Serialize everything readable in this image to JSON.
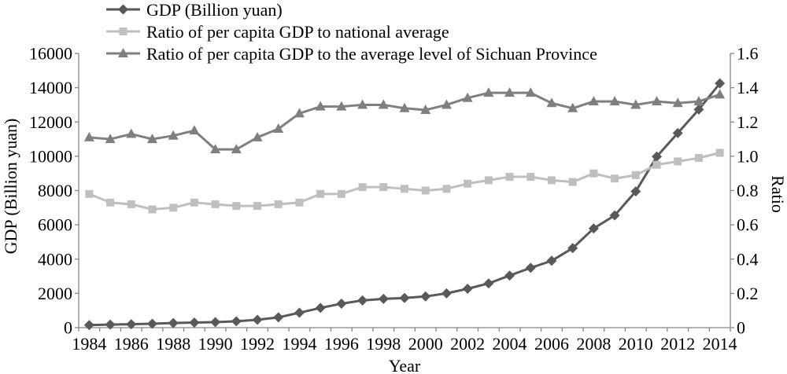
{
  "chart_data": {
    "type": "line",
    "x": [
      1984,
      1985,
      1986,
      1987,
      1988,
      1989,
      1990,
      1991,
      1992,
      1993,
      1994,
      1995,
      1996,
      1997,
      1998,
      1999,
      2000,
      2001,
      2002,
      2003,
      2004,
      2005,
      2006,
      2007,
      2008,
      2009,
      2010,
      2011,
      2012,
      2013,
      2014
    ],
    "xticks": [
      "1984",
      "1986",
      "1988",
      "1990",
      "1992",
      "1994",
      "1996",
      "1998",
      "2000",
      "2002",
      "2004",
      "2006",
      "2008",
      "2010",
      "2012",
      "2014"
    ],
    "xlabel": "Year",
    "ylabel": "GDP (Billion yuan)",
    "y2label": "Ratio",
    "ylim": [
      0,
      16000
    ],
    "y2lim": [
      0,
      1.6
    ],
    "yticks": [
      "0",
      "2000",
      "4000",
      "6000",
      "8000",
      "10000",
      "12000",
      "14000",
      "16000"
    ],
    "y2ticks": [
      "0",
      "0.2",
      "0.4",
      "0.6",
      "0.8",
      "1.0",
      "1.2",
      "1.4",
      "1.6"
    ],
    "grid": false,
    "legend": "top",
    "series": [
      {
        "name": "GDP (Billion yuan)",
        "axis": "left",
        "marker": "diamond",
        "color": "#595959",
        "values": [
          150,
          180,
          200,
          230,
          270,
          300,
          320,
          370,
          460,
          600,
          870,
          1150,
          1400,
          1590,
          1680,
          1730,
          1820,
          2000,
          2270,
          2580,
          3040,
          3490,
          3900,
          4640,
          5790,
          6550,
          7950,
          9980,
          11350,
          12730,
          14250
        ]
      },
      {
        "name": "Ratio of per capita GDP to national average",
        "axis": "right",
        "marker": "square",
        "color": "#bfbfbf",
        "values": [
          0.78,
          0.73,
          0.72,
          0.69,
          0.7,
          0.73,
          0.72,
          0.71,
          0.71,
          0.72,
          0.73,
          0.78,
          0.78,
          0.82,
          0.82,
          0.81,
          0.8,
          0.81,
          0.84,
          0.86,
          0.88,
          0.88,
          0.86,
          0.85,
          0.9,
          0.87,
          0.89,
          0.95,
          0.97,
          0.99,
          1.02
        ]
      },
      {
        "name": "Ratio of per capita GDP to the average level of Sichuan Province",
        "axis": "right",
        "marker": "triangle",
        "color": "#7f7f7f",
        "values": [
          1.11,
          1.1,
          1.13,
          1.1,
          1.12,
          1.15,
          1.04,
          1.04,
          1.11,
          1.16,
          1.25,
          1.29,
          1.29,
          1.3,
          1.3,
          1.28,
          1.27,
          1.3,
          1.34,
          1.37,
          1.37,
          1.37,
          1.31,
          1.28,
          1.32,
          1.32,
          1.3,
          1.32,
          1.31,
          1.32,
          1.36
        ]
      }
    ]
  }
}
